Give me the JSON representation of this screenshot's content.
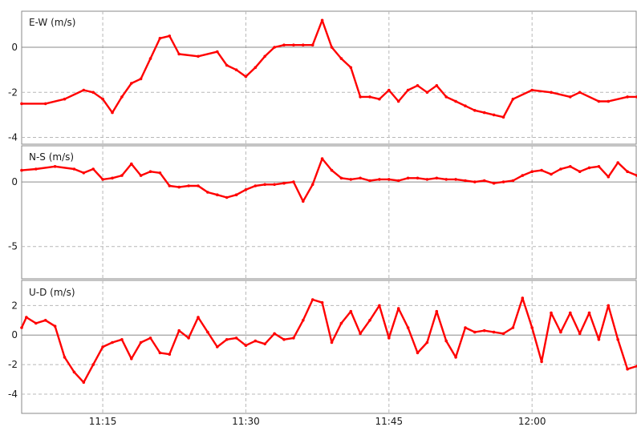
{
  "chart_data": [
    {
      "type": "line",
      "ylabel": "E-W (m/s)",
      "ylim": [
        -4.3,
        1.6
      ],
      "yticks": [
        -4,
        -2,
        0
      ],
      "xticks": [
        "11:15",
        "11:30",
        "11:45",
        "12:00"
      ],
      "grid": true,
      "series": [
        {
          "color": "#ff0000",
          "x": [
            "11:06:30",
            "11:09",
            "11:11",
            "11:13",
            "11:14",
            "11:15",
            "11:16",
            "11:17",
            "11:18",
            "11:19",
            "11:20",
            "11:21",
            "11:22",
            "11:23",
            "11:25",
            "11:27",
            "11:28",
            "11:29",
            "11:30",
            "11:31",
            "11:32",
            "11:33",
            "11:34",
            "11:35",
            "11:36",
            "11:37",
            "11:38",
            "11:39",
            "11:40",
            "11:41",
            "11:42",
            "11:43",
            "11:44",
            "11:45",
            "11:46",
            "11:47",
            "11:48",
            "11:49",
            "11:50",
            "11:51",
            "11:52",
            "11:53",
            "11:54",
            "11:55",
            "11:56",
            "11:57",
            "11:58",
            "12:00",
            "12:02",
            "12:04",
            "12:05",
            "12:07",
            "12:08",
            "12:10",
            "12:11"
          ],
          "values": [
            -2.5,
            -2.5,
            -2.3,
            -1.9,
            -2.0,
            -2.3,
            -2.9,
            -2.2,
            -1.6,
            -1.4,
            -0.5,
            0.4,
            0.5,
            -0.3,
            -0.4,
            -0.2,
            -0.8,
            -1.0,
            -1.3,
            -0.9,
            -0.4,
            0.0,
            0.1,
            0.1,
            0.1,
            0.1,
            1.2,
            0.0,
            -0.5,
            -0.9,
            -2.2,
            -2.2,
            -2.3,
            -1.9,
            -2.4,
            -1.9,
            -1.7,
            -2.0,
            -1.7,
            -2.2,
            -2.4,
            -2.6,
            -2.8,
            -2.9,
            -3.0,
            -3.1,
            -2.3,
            -1.9,
            -2.0,
            -2.2,
            -2.0,
            -2.4,
            -2.4,
            -2.2,
            -2.2
          ]
        }
      ]
    },
    {
      "type": "line",
      "ylabel": "N-S (m/s)",
      "ylim": [
        -7.5,
        2.8
      ],
      "yticks": [
        -5,
        0
      ],
      "xticks": [
        "11:15",
        "11:30",
        "11:45",
        "12:00"
      ],
      "grid": true,
      "series": [
        {
          "color": "#ff0000",
          "x": [
            "11:06:30",
            "11:08",
            "11:10",
            "11:12",
            "11:13",
            "11:14",
            "11:15",
            "11:16",
            "11:17",
            "11:18",
            "11:19",
            "11:20",
            "11:21",
            "11:22",
            "11:23",
            "11:24",
            "11:25",
            "11:26",
            "11:27",
            "11:28",
            "11:29",
            "11:30",
            "11:31",
            "11:32",
            "11:33",
            "11:34",
            "11:35",
            "11:36",
            "11:37",
            "11:38",
            "11:39",
            "11:40",
            "11:41",
            "11:42",
            "11:43",
            "11:44",
            "11:45",
            "11:46",
            "11:47",
            "11:48",
            "11:49",
            "11:50",
            "11:51",
            "11:52",
            "11:53",
            "11:54",
            "11:55",
            "11:56",
            "11:57",
            "11:58",
            "11:59",
            "12:00",
            "12:01",
            "12:02",
            "12:03",
            "12:04",
            "12:05",
            "12:06",
            "12:07",
            "12:08",
            "12:09",
            "12:10",
            "12:11"
          ],
          "values": [
            0.9,
            1.0,
            1.2,
            1.0,
            0.7,
            1.0,
            0.2,
            0.3,
            0.5,
            1.4,
            0.5,
            0.8,
            0.7,
            -0.3,
            -0.4,
            -0.3,
            -0.3,
            -0.8,
            -1.0,
            -1.2,
            -1.0,
            -0.6,
            -0.3,
            -0.2,
            -0.2,
            -0.1,
            0.0,
            -1.5,
            -0.2,
            1.8,
            0.9,
            0.3,
            0.2,
            0.3,
            0.1,
            0.2,
            0.2,
            0.1,
            0.3,
            0.3,
            0.2,
            0.3,
            0.2,
            0.2,
            0.1,
            0.0,
            0.1,
            -0.1,
            0.0,
            0.1,
            0.5,
            0.8,
            0.9,
            0.6,
            1.0,
            1.2,
            0.8,
            1.1,
            1.2,
            0.4,
            1.5,
            0.8,
            0.5
          ]
        }
      ]
    },
    {
      "type": "line",
      "ylabel": "U-D (m/s)",
      "ylim": [
        -5.3,
        3.7
      ],
      "yticks": [
        -4,
        -2,
        0,
        2
      ],
      "xticks": [
        "11:15",
        "11:30",
        "11:45",
        "12:00"
      ],
      "grid": true,
      "series": [
        {
          "color": "#ff0000",
          "x": [
            "11:06:30",
            "11:07",
            "11:08",
            "11:09",
            "11:10",
            "11:11",
            "11:12",
            "11:13",
            "11:14",
            "11:15",
            "11:16",
            "11:17",
            "11:18",
            "11:19",
            "11:20",
            "11:21",
            "11:22",
            "11:23",
            "11:24",
            "11:25",
            "11:26",
            "11:27",
            "11:28",
            "11:29",
            "11:30",
            "11:31",
            "11:32",
            "11:33",
            "11:34",
            "11:35",
            "11:36",
            "11:37",
            "11:38",
            "11:39",
            "11:40",
            "11:41",
            "11:42",
            "11:43",
            "11:44",
            "11:45",
            "11:46",
            "11:47",
            "11:48",
            "11:49",
            "11:50",
            "11:51",
            "11:52",
            "11:53",
            "11:54",
            "11:55",
            "11:56",
            "11:57",
            "11:58",
            "11:59",
            "12:00",
            "12:01",
            "12:02",
            "12:03",
            "12:04",
            "12:05",
            "12:06",
            "12:07",
            "12:08",
            "12:09",
            "12:10",
            "12:11"
          ],
          "values": [
            0.5,
            1.2,
            0.8,
            1.0,
            0.6,
            -1.5,
            -2.5,
            -3.2,
            -2.0,
            -0.8,
            -0.5,
            -0.3,
            -1.6,
            -0.5,
            -0.2,
            -1.2,
            -1.3,
            0.3,
            -0.2,
            1.2,
            0.2,
            -0.8,
            -0.3,
            -0.2,
            -0.7,
            -0.4,
            -0.6,
            0.1,
            -0.3,
            -0.2,
            1.0,
            2.4,
            2.2,
            -0.5,
            0.8,
            1.6,
            0.1,
            1.0,
            2.0,
            -0.2,
            1.8,
            0.5,
            -1.2,
            -0.5,
            1.6,
            -0.4,
            -1.5,
            0.5,
            0.2,
            0.3,
            0.2,
            0.1,
            0.5,
            2.5,
            0.5,
            -1.8,
            1.5,
            0.2,
            1.5,
            0.1,
            1.5,
            -0.3,
            2.0,
            -0.3,
            -2.3,
            -2.1
          ]
        }
      ]
    }
  ],
  "labels": {
    "ew": "E-W (m/s)",
    "ns": "N-S (m/s)",
    "ud": "U-D (m/s)"
  },
  "colors": {
    "series": "#ff0000",
    "grid": "#b8b8b8",
    "axis": "#8a8a8a",
    "zero_line": "#8a8a8a"
  }
}
